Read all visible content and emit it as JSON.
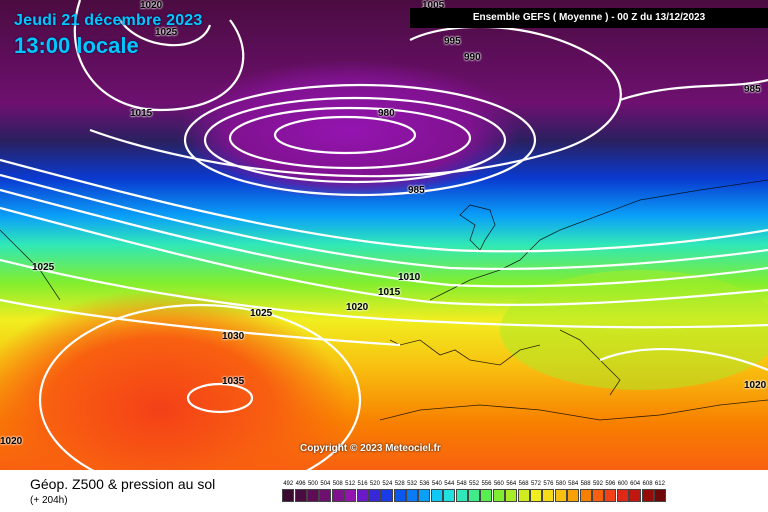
{
  "header": {
    "date": "Jeudi 21 décembre 2023",
    "local_time": "13:00 locale",
    "model_run": "Ensemble GEFS  ( Moyenne )  -  00 Z du 13/12/2023"
  },
  "copyright": "Copyright © 2023 Meteociel.fr",
  "footer": {
    "title": "Géop. Z500 & pression au sol",
    "lead_time": "(+ 204h)"
  },
  "isobar_labels": [
    "1020",
    "1025",
    "1005",
    "995",
    "990",
    "985",
    "1015",
    "980",
    "985",
    "1025",
    "1010",
    "1015",
    "1020",
    "1025",
    "1030",
    "1035",
    "1020",
    "1020"
  ],
  "legend": {
    "values": [
      "492",
      "496",
      "500",
      "504",
      "508",
      "512",
      "516",
      "520",
      "524",
      "528",
      "532",
      "536",
      "540",
      "544",
      "548",
      "552",
      "556",
      "560",
      "564",
      "568",
      "572",
      "576",
      "580",
      "584",
      "588",
      "592",
      "596",
      "600",
      "604",
      "608",
      "612"
    ],
    "colors": [
      "#3a0a30",
      "#4a0c40",
      "#5c0d55",
      "#6e1070",
      "#801290",
      "#9414b0",
      "#6a1ac8",
      "#3828d8",
      "#1a3ce8",
      "#0a58f0",
      "#0a7af5",
      "#0aa0f8",
      "#10c8f5",
      "#20e0e0",
      "#30e8b8",
      "#40ec88",
      "#58ee50",
      "#80ee30",
      "#a8ec28",
      "#d0ec20",
      "#f0ee20",
      "#f8dc18",
      "#f8c010",
      "#f8a008",
      "#f88000",
      "#f86010",
      "#f44018",
      "#e02818",
      "#c01810",
      "#980c08",
      "#700808"
    ]
  }
}
